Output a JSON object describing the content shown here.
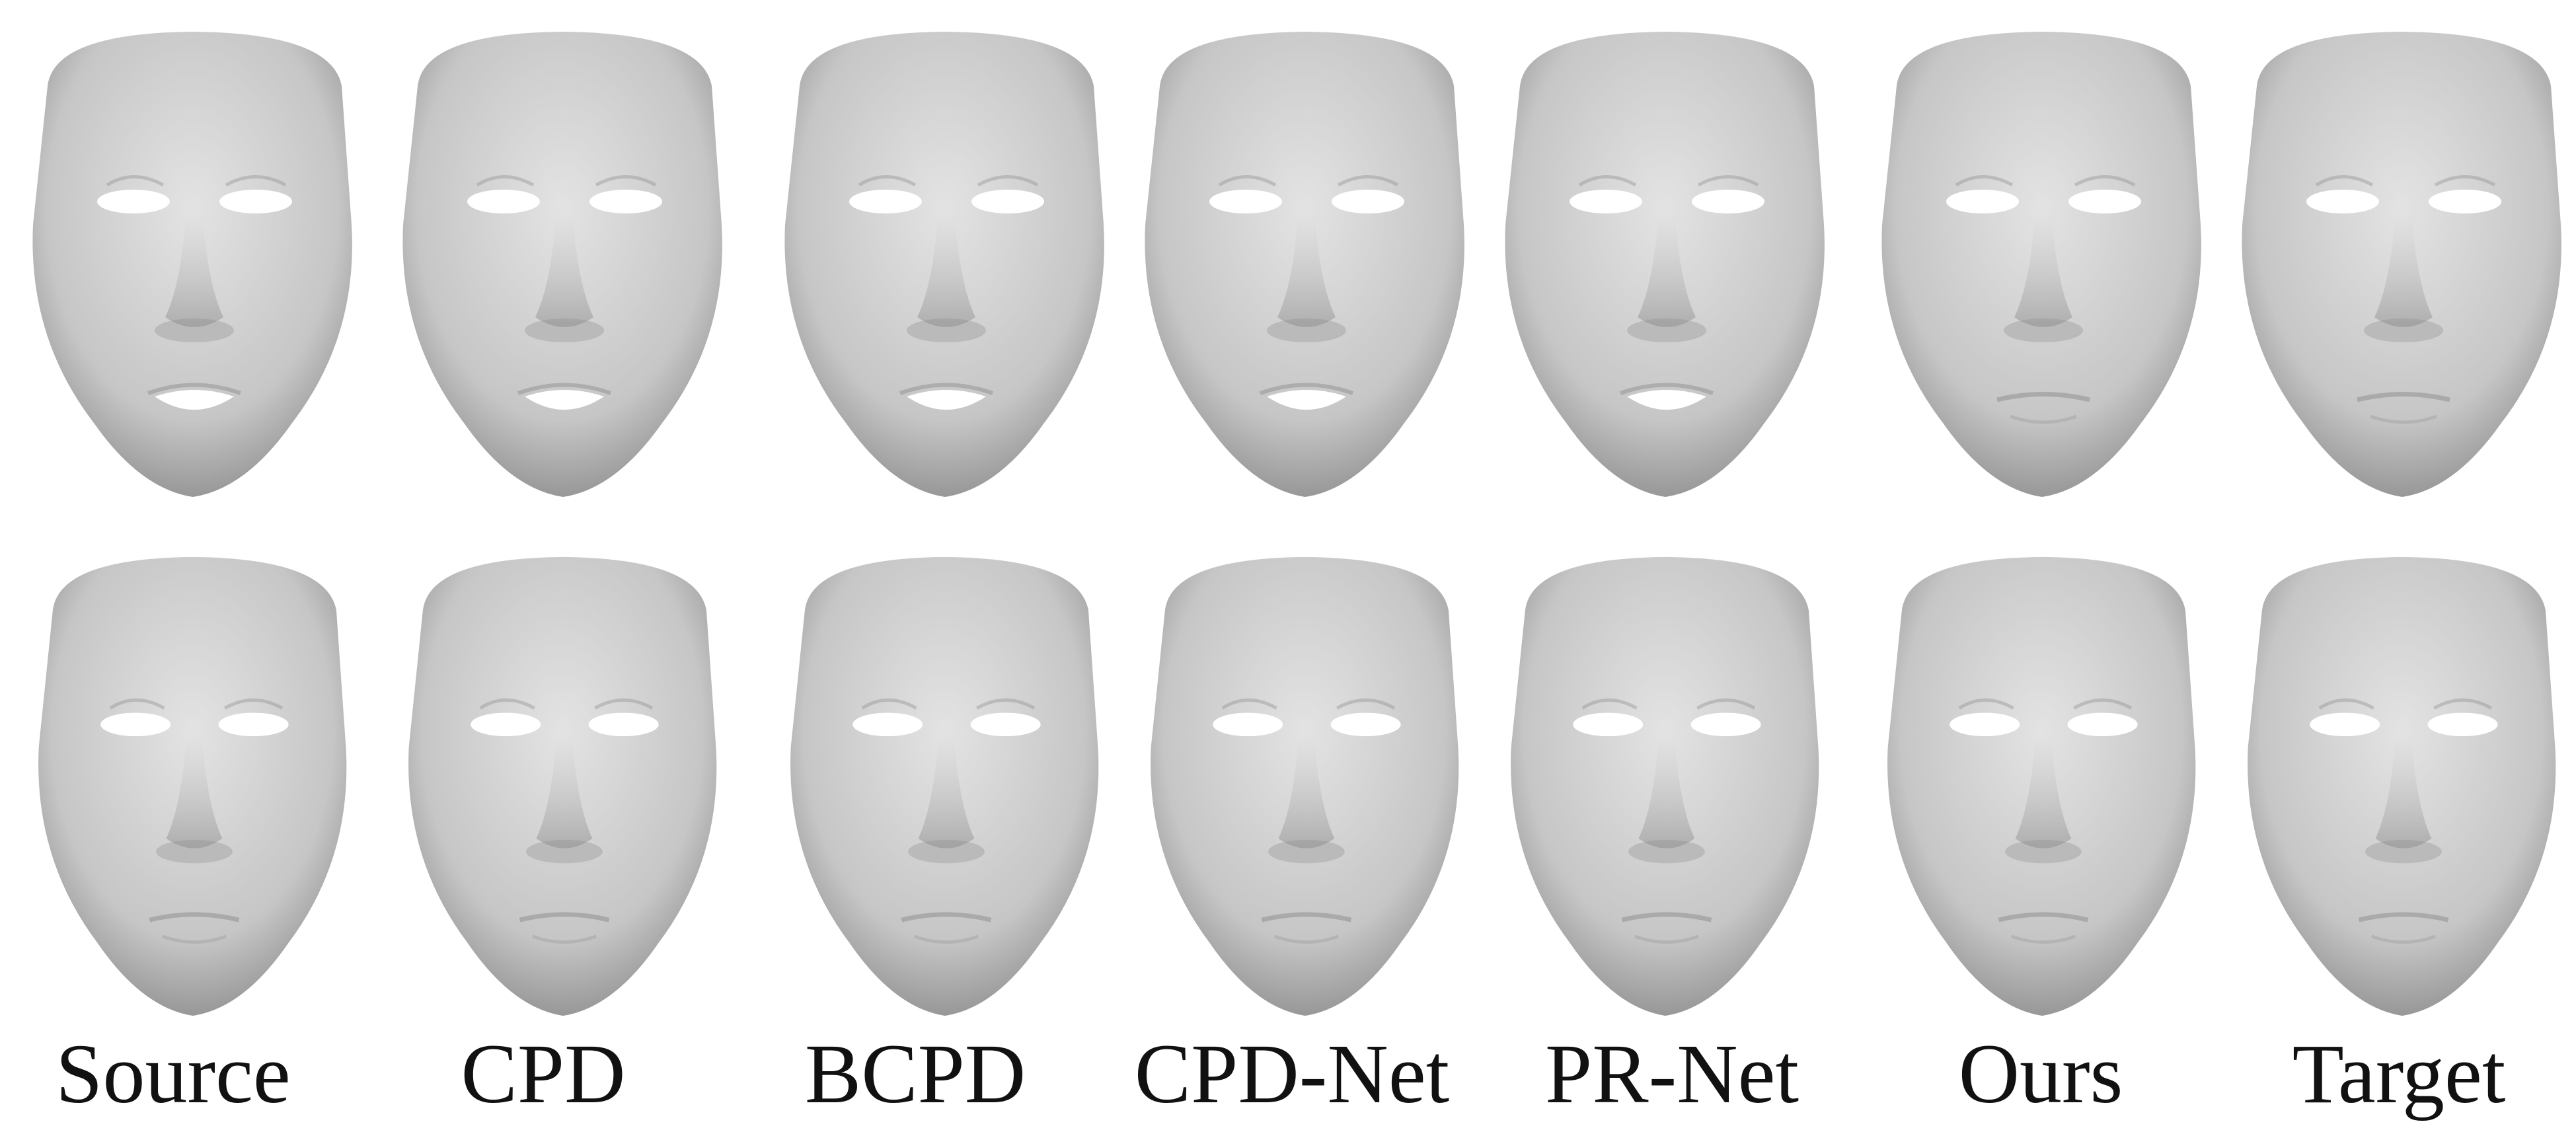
{
  "columns": [
    {
      "label": "Source"
    },
    {
      "label": "CPD"
    },
    {
      "label": "BCPD"
    },
    {
      "label": "CPD-Net"
    },
    {
      "label": "PR-Net"
    },
    {
      "label": "Ours"
    },
    {
      "label": "Target"
    }
  ],
  "colors": {
    "background": "#ffffff",
    "mesh_light": "#e3e3e3",
    "mesh_mid": "#c6c6c6",
    "mesh_dark": "#8f8f8f",
    "label_text": "#111111"
  }
}
